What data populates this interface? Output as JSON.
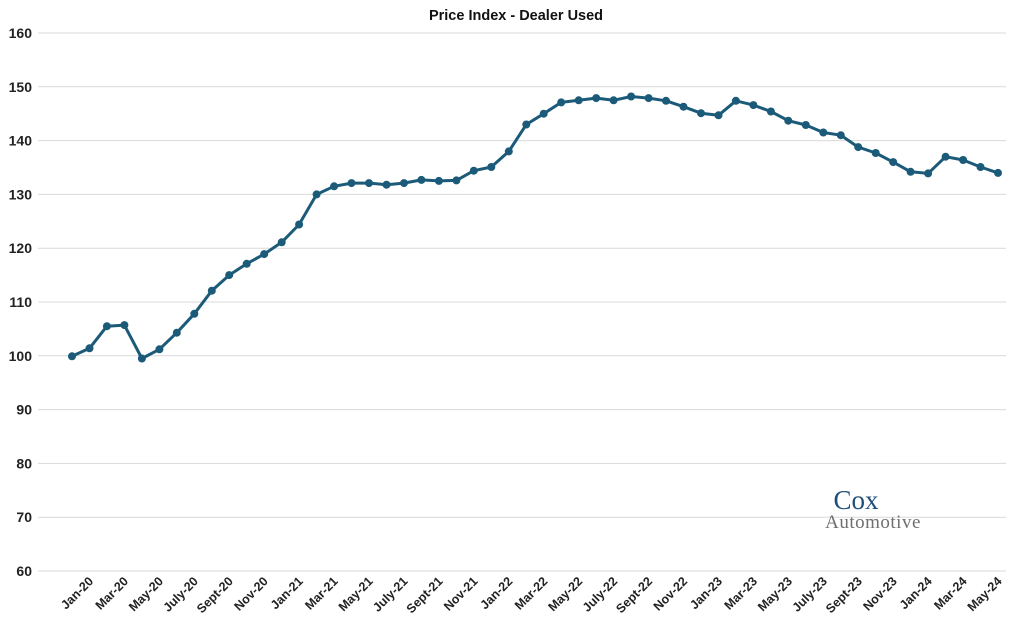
{
  "chart_data": {
    "type": "line",
    "title": "Price Index - Dealer Used",
    "xlabel": "",
    "ylabel": "",
    "ylim": [
      60,
      160
    ],
    "yticks": [
      60,
      70,
      80,
      90,
      100,
      110,
      120,
      130,
      140,
      150,
      160
    ],
    "grid": true,
    "legend": "none",
    "x": [
      "Jan-20",
      "Feb-20",
      "Mar-20",
      "Apr-20",
      "May-20",
      "Jun-20",
      "July-20",
      "Aug-20",
      "Sept-20",
      "Oct-20",
      "Nov-20",
      "Dec-20",
      "Jan-21",
      "Feb-21",
      "Mar-21",
      "Apr-21",
      "May-21",
      "Jun-21",
      "July-21",
      "Aug-21",
      "Sept-21",
      "Oct-21",
      "Nov-21",
      "Dec-21",
      "Jan-22",
      "Feb-22",
      "Mar-22",
      "Apr-22",
      "May-22",
      "Jun-22",
      "July-22",
      "Aug-22",
      "Sept-22",
      "Oct-22",
      "Nov-22",
      "Dec-22",
      "Jan-23",
      "Feb-23",
      "Mar-23",
      "Apr-23",
      "May-23",
      "Jun-23",
      "July-23",
      "Aug-23",
      "Sept-23",
      "Oct-23",
      "Nov-23",
      "Dec-23",
      "Jan-24",
      "Feb-24",
      "Mar-24",
      "Apr-24",
      "May-24",
      "Jun-24"
    ],
    "x_tick_labels": [
      "Jan-20",
      "Mar-20",
      "May-20",
      "July-20",
      "Sept-20",
      "Nov-20",
      "Jan-21",
      "Mar-21",
      "May-21",
      "July-21",
      "Sept-21",
      "Nov-21",
      "Jan-22",
      "Mar-22",
      "May-22",
      "July-22",
      "Sept-22",
      "Nov-22",
      "Jan-23",
      "Mar-23",
      "May-23",
      "July-23",
      "Sept-23",
      "Nov-23",
      "Jan-24",
      "Mar-24",
      "May-24"
    ],
    "series": [
      {
        "color": "#1b5a78",
        "values": [
          99.9,
          101.4,
          105.5,
          105.7,
          99.5,
          101.2,
          104.3,
          107.8,
          112.1,
          115.0,
          117.1,
          118.9,
          121.1,
          124.4,
          130.0,
          131.5,
          132.1,
          132.1,
          131.8,
          132.1,
          132.7,
          132.5,
          132.6,
          134.4,
          135.1,
          138.0,
          143.0,
          145.0,
          147.1,
          147.5,
          147.9,
          147.5,
          148.2,
          147.9,
          147.4,
          146.3,
          145.1,
          144.7,
          147.4,
          146.6,
          145.4,
          143.7,
          142.9,
          141.5,
          141.0,
          138.8,
          137.7,
          136.0,
          134.2,
          133.9,
          137.0,
          136.4,
          135.1,
          134.0
        ]
      }
    ]
  },
  "logo": {
    "line1": "Cox",
    "line2": "Automotive",
    "color_top": "#1f4e79",
    "color_bottom": "#6f6f6f"
  }
}
